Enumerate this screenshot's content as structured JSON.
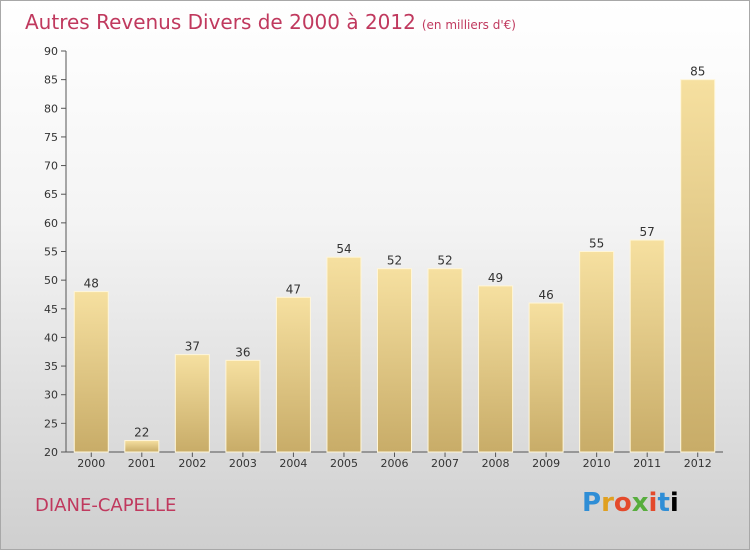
{
  "title": "Autres Revenus Divers de 2000 à 2012",
  "title_unit": "(en milliers d'€)",
  "place": "DIANE-CAPELLE",
  "logo_letters": [
    "P",
    "r",
    "o",
    "x",
    "i",
    "t",
    "i"
  ],
  "colors": {
    "title": "#c0395e",
    "bar_top": "#f6e0a0",
    "bar_bottom": "#c8ac68"
  },
  "chart_data": {
    "type": "bar",
    "title": "Autres Revenus Divers de 2000 à 2012",
    "xlabel": "",
    "ylabel": "",
    "categories": [
      "2000",
      "2001",
      "2002",
      "2003",
      "2004",
      "2005",
      "2006",
      "2007",
      "2008",
      "2009",
      "2010",
      "2011",
      "2012"
    ],
    "values": [
      48,
      22,
      37,
      36,
      47,
      54,
      52,
      52,
      49,
      46,
      55,
      57,
      85
    ],
    "ylim": [
      20,
      90
    ],
    "yticks": [
      20,
      25,
      30,
      35,
      40,
      45,
      50,
      55,
      60,
      65,
      70,
      75,
      80,
      85,
      90
    ],
    "grid": false,
    "legend": "none"
  }
}
